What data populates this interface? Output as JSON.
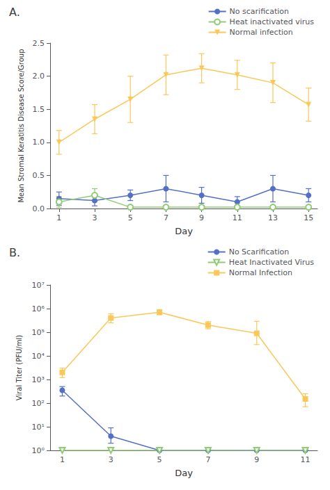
{
  "chart_data": [
    {
      "type": "line",
      "title": "A.",
      "xlabel": "Day",
      "ylabel": "Mean Stromal Keratitis Disease Score/Group",
      "x": [
        1,
        3,
        5,
        7,
        9,
        11,
        13,
        15
      ],
      "xlim": [
        0.5,
        15.5
      ],
      "xticks": [
        1,
        3,
        5,
        7,
        9,
        11,
        13,
        15
      ],
      "ylim": [
        0,
        2.5
      ],
      "yticks": [
        {
          "value": 0,
          "label": "0.0"
        },
        0.5,
        {
          "value": 1,
          "label": "1.0"
        },
        1.5,
        {
          "value": 2,
          "label": "2.0"
        },
        2.5
      ],
      "grid": false,
      "legend": "right",
      "series": [
        {
          "name": "No scarification",
          "marker": "circle",
          "values": [
            0.15,
            0.12,
            0.2,
            0.3,
            0.2,
            0.1,
            0.3,
            0.2
          ],
          "yerr": [
            0.1,
            0.08,
            0.08,
            0.2,
            0.12,
            0.08,
            0.2,
            0.1
          ]
        },
        {
          "name": "Heat inactivated virus",
          "marker": "open_circle",
          "values": [
            0.1,
            0.2,
            0.02,
            0.02,
            0.02,
            0.02,
            0.02,
            0.02
          ],
          "yerr": [
            0.08,
            0.1,
            0.02,
            0.02,
            0.02,
            0.02,
            0.02,
            0.02
          ]
        },
        {
          "name": "Normal infection",
          "marker": "triangle_down",
          "values": [
            1.0,
            1.35,
            1.65,
            2.02,
            2.12,
            2.02,
            1.9,
            1.57
          ],
          "yerr": [
            0.18,
            0.22,
            0.35,
            0.3,
            0.22,
            0.22,
            0.3,
            0.25
          ]
        }
      ]
    },
    {
      "type": "line",
      "title": "B.",
      "xlabel": "Day",
      "ylabel": "Viral Titer (PFU/ml)",
      "x": [
        1,
        3,
        5,
        7,
        9,
        11
      ],
      "xlim": [
        0.5,
        11.5
      ],
      "xticks": [
        1,
        3,
        5,
        7,
        9,
        11
      ],
      "log": "y",
      "ylim": [
        1,
        10000000
      ],
      "yticks": [
        {
          "value": 1,
          "label": "10⁰"
        },
        {
          "value": 10,
          "label": "10¹"
        },
        {
          "value": 100,
          "label": "10²"
        },
        {
          "value": 1000,
          "label": "10³"
        },
        {
          "value": 10000,
          "label": "10⁴"
        },
        {
          "value": 100000,
          "label": "10⁵"
        },
        {
          "value": 1000000,
          "label": "10⁶"
        },
        {
          "value": 10000000,
          "label": "10⁷"
        }
      ],
      "grid": false,
      "legend": "right",
      "series": [
        {
          "name": "No Scarification",
          "marker": "circle",
          "values": [
            350,
            4,
            1,
            1,
            1,
            1
          ],
          "yerr_lower": [
            150,
            2,
            0,
            0,
            0,
            0
          ],
          "yerr_upper": [
            150,
            5,
            0,
            0,
            0,
            0
          ]
        },
        {
          "name": "Heat Inactivated Virus",
          "marker": "open_triangle_down",
          "values": [
            1,
            1,
            1,
            1,
            1,
            1
          ],
          "yerr_lower": [
            0,
            0,
            0,
            0,
            0,
            0
          ],
          "yerr_upper": [
            0,
            0,
            0,
            0,
            0,
            0
          ]
        },
        {
          "name": "Normal Infection",
          "marker": "square",
          "values": [
            2000,
            400000,
            700000,
            200000,
            90000,
            150
          ],
          "yerr_lower": [
            800,
            150000,
            150000,
            60000,
            60000,
            80
          ],
          "yerr_upper": [
            1000,
            200000,
            200000,
            80000,
            200000,
            100
          ]
        }
      ]
    }
  ]
}
